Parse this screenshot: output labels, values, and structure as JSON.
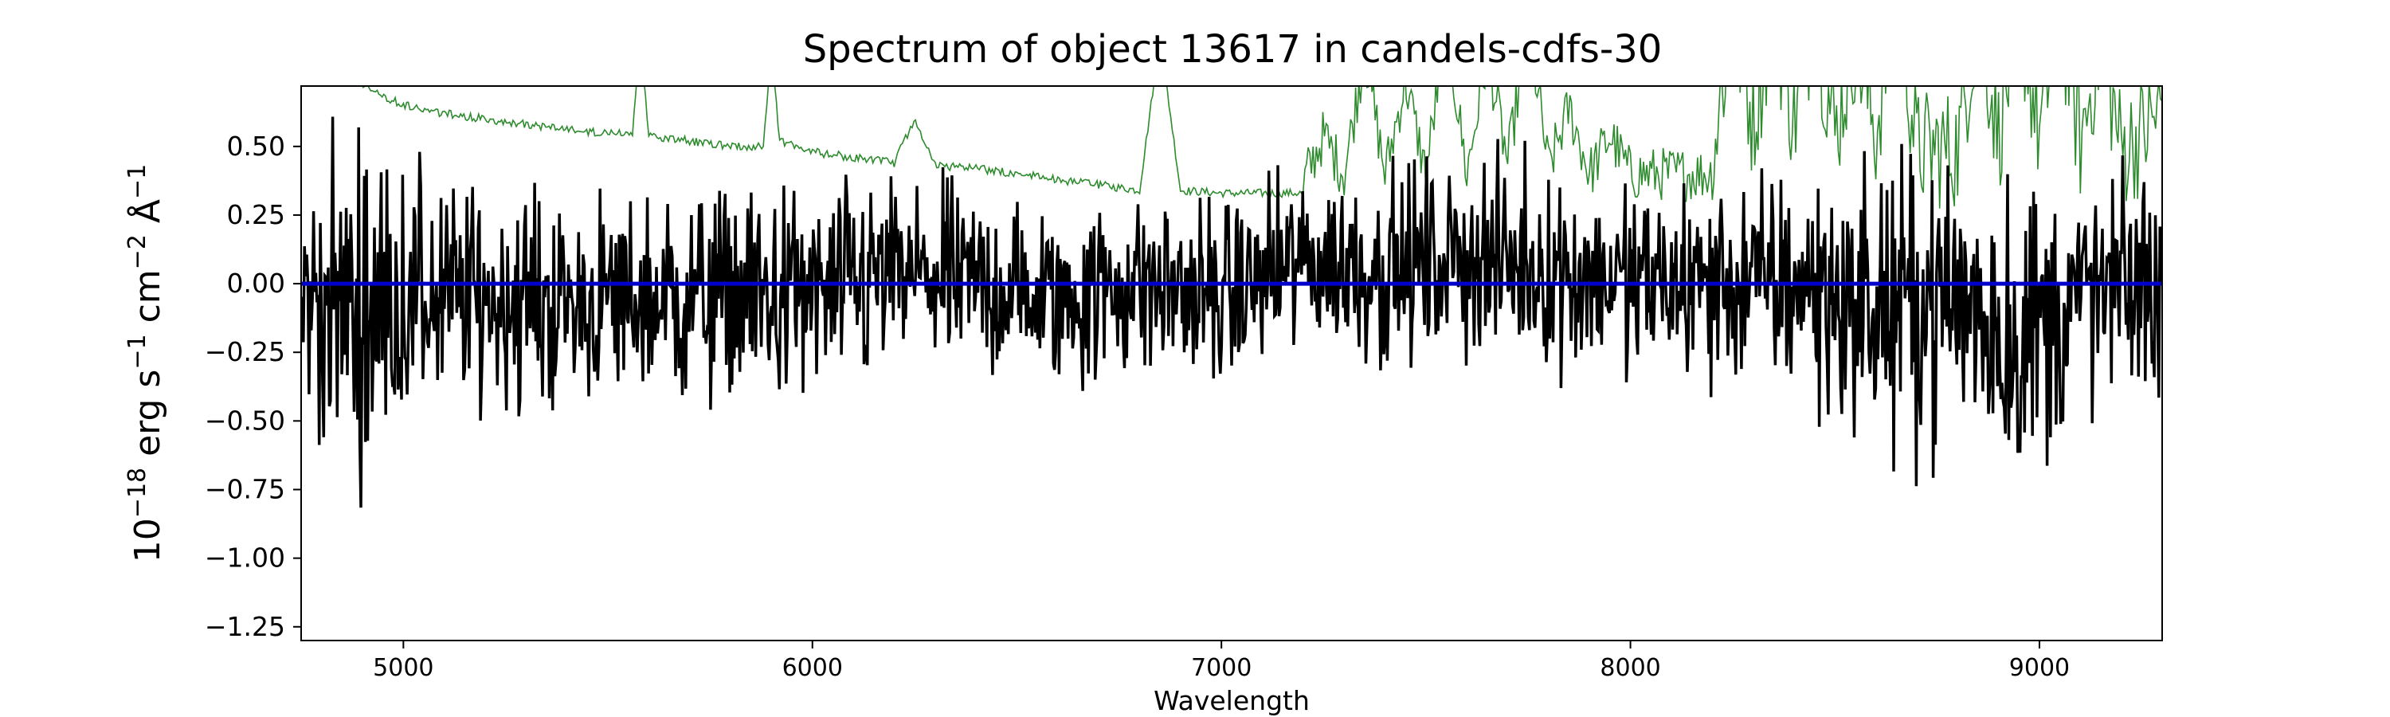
{
  "chart_data": {
    "type": "line",
    "title": "Spectrum of object 13617 in candels-cdfs-30",
    "xlabel": "Wavelength",
    "ylabel": {
      "parts": [
        "10",
        "−18",
        " erg s",
        "−1",
        " cm",
        "−2",
        " Å",
        "−1"
      ]
    },
    "xlim": [
      4750,
      9300
    ],
    "ylim": [
      -1.3,
      0.72
    ],
    "xticks": [
      5000,
      6000,
      7000,
      8000,
      9000
    ],
    "xtick_labels": [
      "5000",
      "6000",
      "7000",
      "8000",
      "9000"
    ],
    "yticks": [
      -1.25,
      -1.0,
      -0.75,
      -0.5,
      -0.25,
      0.0,
      0.25,
      0.5
    ],
    "ytick_labels": [
      "−1.25",
      "−1.00",
      "−0.75",
      "−0.50",
      "−0.25",
      "0.00",
      "0.25",
      "0.50"
    ],
    "grid": false,
    "legend": "none",
    "series": [
      {
        "role": "error",
        "color": "#2e8b2e",
        "x": [
          4900,
          5000,
          5100,
          5200,
          5300,
          5400,
          5500,
          5560,
          5580,
          5600,
          5700,
          5800,
          5880,
          5900,
          5920,
          6000,
          6100,
          6200,
          6250,
          6300,
          6400,
          6500,
          6600,
          6700,
          6800,
          6850,
          6900,
          7000,
          7100,
          7200,
          7250,
          7300,
          7350,
          7400,
          7450,
          7500,
          7550,
          7600,
          7650,
          7700,
          7750,
          7800,
          7850,
          7900,
          7950,
          8000,
          8100,
          8200,
          8250,
          8300,
          8350,
          8400,
          8450,
          8500,
          8550,
          8600,
          8650,
          8700,
          8800,
          8850,
          8900,
          8950,
          9000,
          9050,
          9100,
          9150,
          9200,
          9250,
          9300
        ],
        "y": [
          0.72,
          0.65,
          0.62,
          0.6,
          0.58,
          0.56,
          0.55,
          0.55,
          0.9,
          0.54,
          0.52,
          0.5,
          0.5,
          0.85,
          0.52,
          0.48,
          0.46,
          0.44,
          0.6,
          0.43,
          0.42,
          0.4,
          0.38,
          0.36,
          0.34,
          0.9,
          0.34,
          0.33,
          0.33,
          0.33,
          0.5,
          0.36,
          0.8,
          0.36,
          0.7,
          0.36,
          0.9,
          0.36,
          0.8,
          0.4,
          0.9,
          0.38,
          0.6,
          0.36,
          0.5,
          0.36,
          0.36,
          0.36,
          0.9,
          0.5,
          0.9,
          0.5,
          0.9,
          0.45,
          0.8,
          0.45,
          1.0,
          0.4,
          0.4,
          0.9,
          0.45,
          0.9,
          0.45,
          0.9,
          0.42,
          0.8,
          0.4,
          0.45,
          0.55
        ]
      },
      {
        "role": "zero",
        "color": "#0000cc",
        "x": [
          4750,
          9300
        ],
        "y": [
          0.0,
          0.0
        ]
      },
      {
        "role": "flux",
        "color": "#000000",
        "x": [
          4750,
          4900,
          5000,
          5200,
          5400,
          5600,
          5800,
          6000,
          6200,
          6400,
          6600,
          6800,
          7000,
          7200,
          7400,
          7600,
          7800,
          8000,
          8200,
          8400,
          8600,
          8800,
          8950,
          9100,
          9300
        ],
        "y": [
          -0.05,
          -0.1,
          -0.05,
          -0.05,
          -0.08,
          -0.06,
          -0.04,
          -0.05,
          0.03,
          0.0,
          -0.06,
          0.0,
          -0.05,
          0.08,
          0.05,
          0.1,
          0.05,
          0.0,
          0.0,
          0.0,
          -0.1,
          -0.05,
          -0.2,
          -0.05,
          0.0
        ],
        "noise_amplitude": [
          0.35,
          0.45,
          0.35,
          0.3,
          0.28,
          0.28,
          0.3,
          0.28,
          0.28,
          0.25,
          0.25,
          0.25,
          0.25,
          0.24,
          0.26,
          0.26,
          0.26,
          0.26,
          0.28,
          0.3,
          0.38,
          0.38,
          0.45,
          0.32,
          0.3
        ]
      }
    ]
  }
}
